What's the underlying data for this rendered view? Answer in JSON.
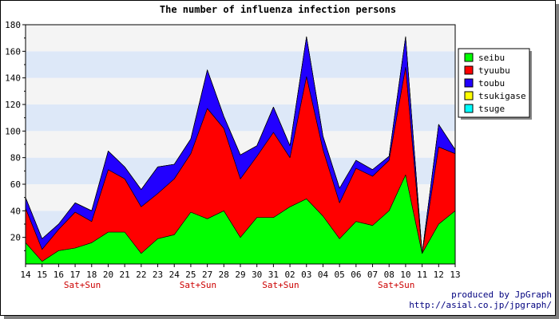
{
  "credit": {
    "line1": "produced by JpGraph",
    "line2": "http://asial.co.jp/jpgraph/"
  },
  "chart_data": {
    "type": "area",
    "stacked": true,
    "title": "The number of influenza infection persons",
    "xlabel": "",
    "ylabel": "",
    "ylim": [
      0,
      180
    ],
    "yticks": [
      20,
      40,
      60,
      80,
      100,
      120,
      140,
      160,
      180
    ],
    "grid": "horizontal bands",
    "band_colors": [
      "#f4f4f4",
      "#dde8f8"
    ],
    "legend_position": "top-right",
    "categories": [
      "14",
      "15",
      "16",
      "17",
      "18",
      "20",
      "21",
      "22",
      "23",
      "24",
      "25",
      "27",
      "28",
      "29",
      "30",
      "31",
      "02",
      "03",
      "04",
      "05",
      "06",
      "07",
      "08",
      "10",
      "11",
      "12",
      "13"
    ],
    "weekend_label": "Sat+Sun",
    "weekend_label_color": "#cc0000",
    "weekend_label_positions": [
      "17",
      "25",
      "31",
      "08"
    ],
    "series": [
      {
        "name": "seibu",
        "color": "#00ff00",
        "values": [
          16,
          2,
          10,
          12,
          16,
          24,
          24,
          8,
          19,
          22,
          39,
          34,
          40,
          20,
          35,
          35,
          43,
          49,
          36,
          19,
          32,
          29,
          40,
          67,
          8,
          30,
          40
        ]
      },
      {
        "name": "tyuubu",
        "color": "#ff0000",
        "values": [
          26,
          9,
          16,
          27,
          16,
          47,
          40,
          35,
          34,
          42,
          44,
          83,
          62,
          44,
          46,
          64,
          37,
          92,
          50,
          27,
          40,
          37,
          38,
          81,
          0,
          58,
          43
        ]
      },
      {
        "name": "toubu",
        "color": "#2200ff",
        "values": [
          8,
          8,
          4,
          7,
          8,
          14,
          9,
          13,
          20,
          11,
          11,
          29,
          9,
          18,
          8,
          19,
          9,
          30,
          10,
          11,
          6,
          5,
          3,
          23,
          0,
          17,
          3
        ]
      },
      {
        "name": "tsukigase",
        "color": "#ffff00",
        "values": [
          0,
          0,
          0,
          0,
          0,
          0,
          0,
          0,
          0,
          0,
          0,
          0,
          0,
          0,
          0,
          0,
          0,
          0,
          0,
          0,
          0,
          0,
          0,
          0,
          0,
          0,
          0
        ]
      },
      {
        "name": "tsuge",
        "color": "#00ffff",
        "values": [
          0,
          0,
          0,
          0,
          0,
          0,
          0,
          0,
          0,
          0,
          0,
          0,
          0,
          0,
          0,
          0,
          0,
          0,
          0,
          0,
          0,
          0,
          0,
          0,
          0,
          0,
          0
        ]
      }
    ]
  }
}
